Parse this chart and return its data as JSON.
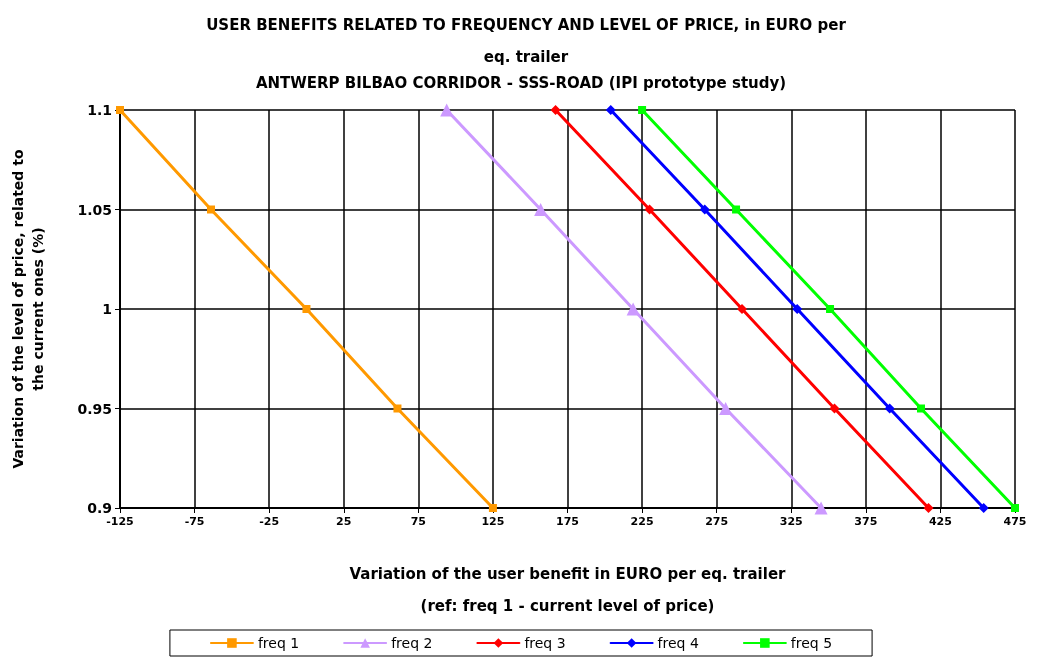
{
  "chart_data": {
    "type": "line",
    "title": "USER BENEFITS RELATED TO FREQUENCY AND LEVEL OF PRICE, in EURO per\neq. trailer",
    "subtitle": "ANTWERP BILBAO CORRIDOR - SSS-ROAD (IPI prototype study)",
    "xlabel": "Variation of the user benefit in EURO per eq. trailer\n(ref: freq 1 - current level of price)",
    "ylabel": "Variation of the level of price, related to\nthe current ones (%)",
    "series": [
      {
        "name": "freq 1",
        "color": "#ff9900",
        "marker": "square",
        "x": [
          -125,
          -64,
          0,
          61,
          125
        ],
        "values": [
          1.1,
          1.05,
          1,
          0.95,
          0.9
        ]
      },
      {
        "name": "freq 2",
        "color": "#cc99ff",
        "marker": "triangle",
        "x": [
          94,
          157,
          219,
          281,
          345
        ],
        "values": [
          1.1,
          1.05,
          1,
          0.95,
          0.9
        ]
      },
      {
        "name": "freq 3",
        "color": "#ff0000",
        "marker": "diamond",
        "x": [
          167,
          230,
          292,
          354,
          417
        ],
        "values": [
          1.1,
          1.05,
          1,
          0.95,
          0.9
        ]
      },
      {
        "name": "freq 4",
        "color": "#0000ff",
        "marker": "diamond",
        "x": [
          204,
          267,
          329,
          391,
          454
        ],
        "values": [
          1.1,
          1.05,
          1,
          0.95,
          0.9
        ]
      },
      {
        "name": "freq 5",
        "color": "#00ff00",
        "marker": "square",
        "x": [
          225,
          288,
          351,
          412,
          475
        ],
        "values": [
          1.1,
          1.05,
          1,
          0.95,
          0.9
        ]
      }
    ],
    "xlim": [
      -125,
      475
    ],
    "xticks": [
      -125,
      -75,
      -25,
      25,
      75,
      125,
      175,
      225,
      275,
      325,
      375,
      425,
      475
    ],
    "ylim": [
      0.9,
      1.1
    ],
    "yticks": [
      0.9,
      0.95,
      1,
      1.05,
      1.1
    ],
    "grid": true,
    "legend": "bottom",
    "line_style": "solid"
  }
}
